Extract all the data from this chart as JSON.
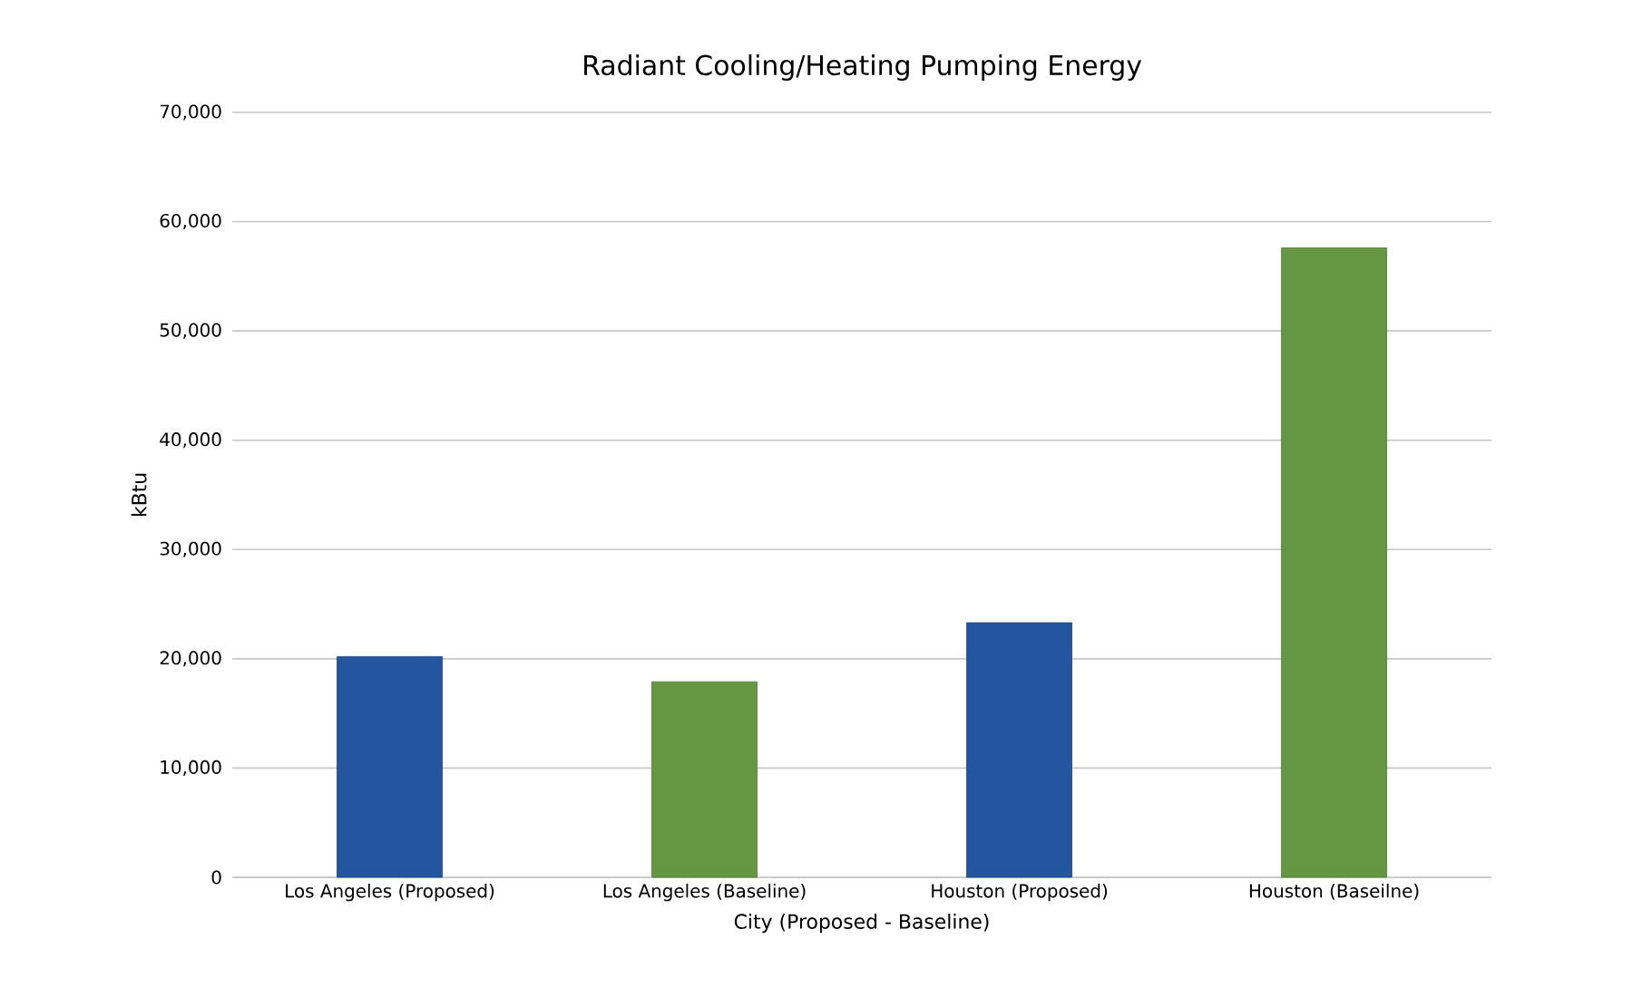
{
  "chart_data": {
    "type": "bar",
    "title": "Radiant Cooling/Heating Pumping Energy",
    "xlabel": "City (Proposed - Baseline)",
    "ylabel": "kBtu",
    "categories": [
      "Los Angeles (Proposed)",
      "Los Angeles (Baseline)",
      "Houston (Proposed)",
      "Houston (Baseilne)"
    ],
    "values": [
      20200,
      17900,
      23300,
      57600
    ],
    "colors": [
      "#2456a0",
      "#659642",
      "#2456a0",
      "#659642"
    ],
    "ylim": [
      0,
      70000
    ],
    "yticks": [
      {
        "value": 0,
        "label": "0"
      },
      {
        "value": 10000,
        "label": "10,000"
      },
      {
        "value": 20000,
        "label": "20,000"
      },
      {
        "value": 30000,
        "label": "30,000"
      },
      {
        "value": 40000,
        "label": "40,000"
      },
      {
        "value": 50000,
        "label": "50,000"
      },
      {
        "value": 60000,
        "label": "60,000"
      },
      {
        "value": 70000,
        "label": "70,000"
      }
    ],
    "grid": "y"
  }
}
